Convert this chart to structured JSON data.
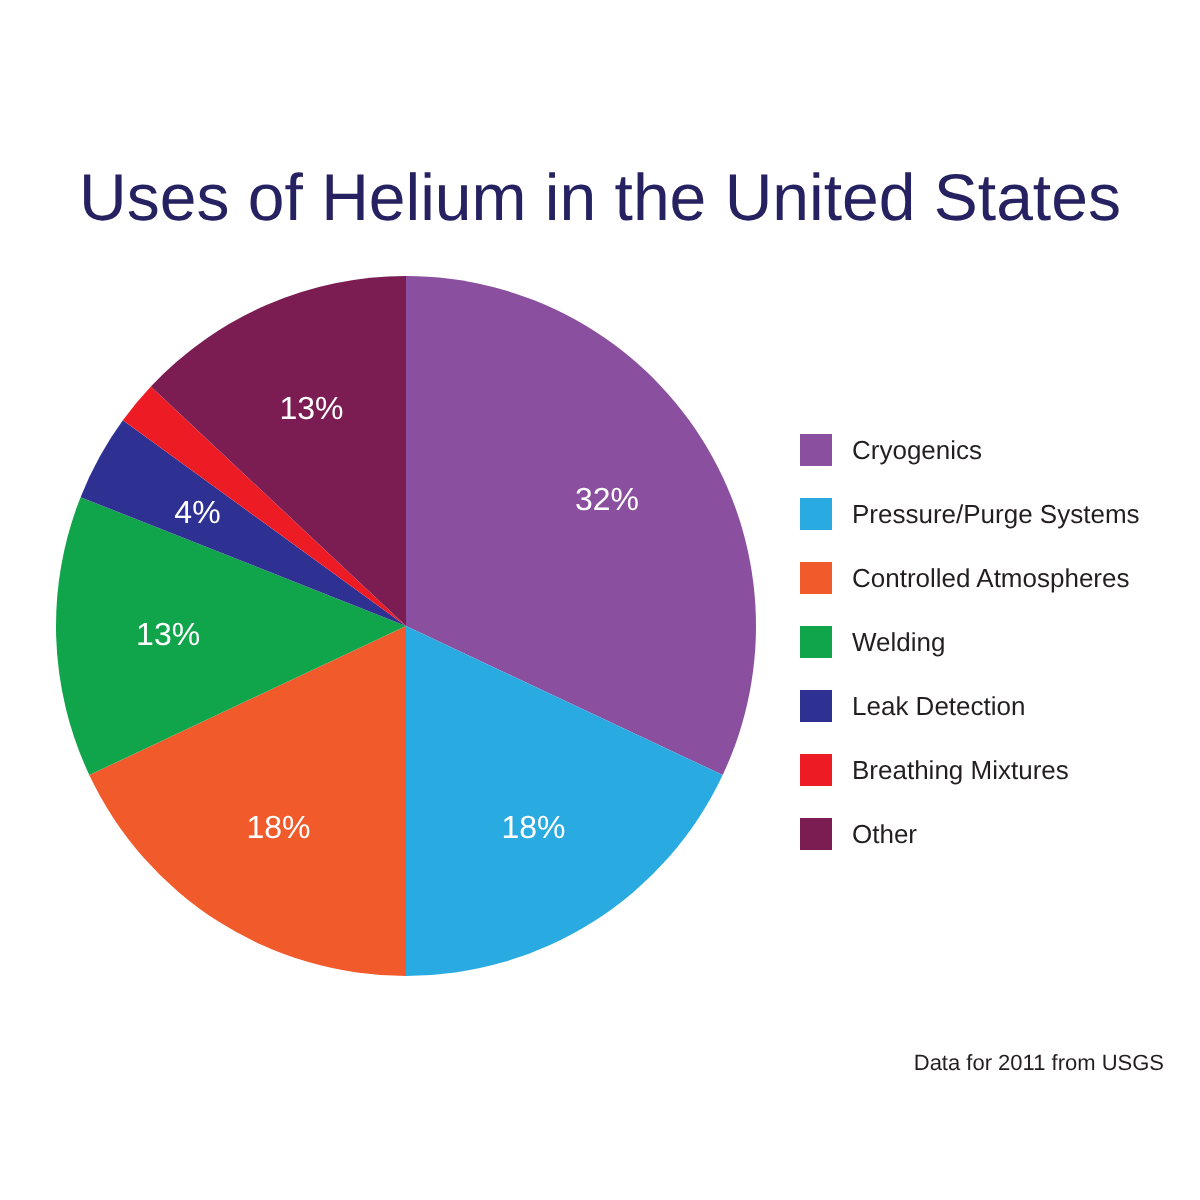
{
  "chart_data": {
    "type": "pie",
    "title": "Uses of Helium in the United States",
    "categories": [
      "Cryogenics",
      "Pressure/Purge Systems",
      "Controlled Atmospheres",
      "Welding",
      "Leak Detection",
      "Breathing Mixtures",
      "Other"
    ],
    "values": [
      32,
      18,
      18,
      13,
      4,
      2,
      13
    ],
    "value_labels": [
      "32%",
      "18%",
      "18%",
      "13%",
      "4%",
      null,
      "13%"
    ],
    "colors": [
      "#8a4f9e",
      "#29abe2",
      "#f15a2b",
      "#10a54a",
      "#2e3192",
      "#ed1c24",
      "#7b1c52"
    ],
    "legend": "right",
    "annotations": [
      "Data for 2011 from USGS"
    ]
  }
}
